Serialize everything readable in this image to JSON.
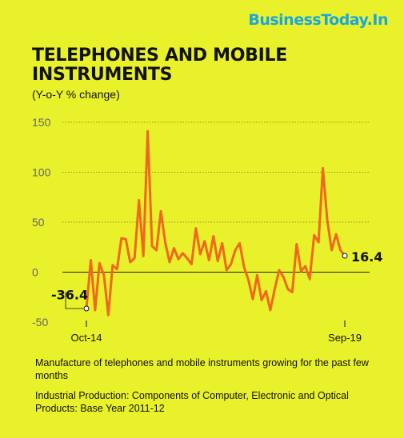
{
  "brand": "BusinessToday.In",
  "chart_data": {
    "type": "line",
    "title": "TELEPHONES AND  MOBILE INSTRUMENTS",
    "subtitle": "(Y-o-Y % change)",
    "ylim": [
      -50,
      150
    ],
    "yticks": [
      "150",
      "100",
      "50",
      "0",
      "-50"
    ],
    "xtick_labels": [
      "Oct-14",
      "Sep-19"
    ],
    "grid": true,
    "color": "#F0671E",
    "values": [
      -36.4,
      12,
      -38,
      9,
      -3,
      -43,
      7,
      3,
      34,
      33,
      10,
      14,
      72,
      16,
      141,
      26,
      22,
      61,
      30,
      10,
      24,
      13,
      19,
      14,
      8,
      44,
      18,
      31,
      12,
      36,
      11,
      29,
      2,
      8,
      22,
      29,
      5,
      -8,
      -27,
      -3,
      -28,
      -19,
      -38,
      -17,
      2,
      -5,
      -17,
      -20,
      28,
      1,
      6,
      -7,
      37,
      30,
      104,
      52,
      22,
      38,
      22,
      16.4
    ],
    "start_label": "-36.4",
    "end_label": "16.4"
  },
  "notes": [
    "Manufacture of telephones and  mobile instruments growing for the past few months",
    "Industrial Production: Components of Computer, Electronic and Optical Products: Base Year 2011-12"
  ]
}
